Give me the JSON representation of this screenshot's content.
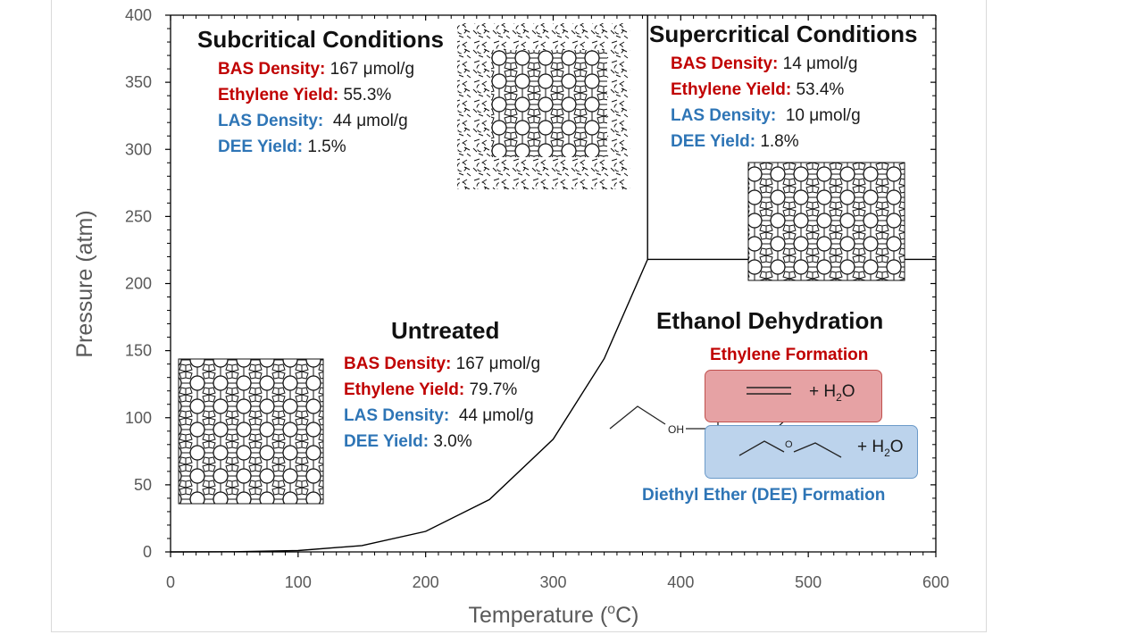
{
  "chart_data": {
    "type": "line",
    "title": "",
    "xlabel_text": "Temperature (",
    "xlabel_sup": "o",
    "xlabel_unit": "C)",
    "ylabel": "Pressure (atm)",
    "xlim": [
      0,
      600
    ],
    "ylim": [
      0,
      400
    ],
    "x_ticks": [
      "0",
      "100",
      "200",
      "300",
      "400",
      "500",
      "600"
    ],
    "y_ticks": [
      "0",
      "50",
      "100",
      "150",
      "200",
      "250",
      "300",
      "350",
      "400"
    ],
    "series": [
      {
        "name": "Vapor pressure curve",
        "x": [
          0,
          50,
          100,
          150,
          200,
          250,
          300,
          340,
          374
        ],
        "y": [
          0.006,
          0.12,
          1,
          4.7,
          15.3,
          39,
          84,
          144,
          218
        ]
      }
    ],
    "boundaries": [
      {
        "name": "critical-temperature-line",
        "x": [
          374,
          374
        ],
        "y": [
          218,
          400
        ]
      },
      {
        "name": "critical-pressure-line",
        "x": [
          374,
          600
        ],
        "y": [
          218,
          218
        ]
      }
    ]
  },
  "subcritical": {
    "title": "Subcritical Conditions",
    "bas_label": "BAS Density:",
    "bas_value": "167 μmol/g",
    "eth_label": "Ethylene Yield:",
    "eth_value": "55.3%",
    "las_label": "LAS Density:",
    "las_value": "44 μmol/g",
    "dee_label": "DEE Yield:",
    "dee_value": "1.5%"
  },
  "supercritical": {
    "title": "Supercritical Conditions",
    "bas_label": "BAS Density:",
    "bas_value": "14 μmol/g",
    "eth_label": "Ethylene Yield:",
    "eth_value": "53.4%",
    "las_label": "LAS Density:",
    "las_value": "10 μmol/g",
    "dee_label": "DEE Yield:",
    "dee_value": "1.8%"
  },
  "untreated": {
    "title": "Untreated",
    "bas_label": "BAS Density:",
    "bas_value": "167 μmol/g",
    "eth_label": "Ethylene Yield:",
    "eth_value": "79.7%",
    "las_label": "LAS Density:",
    "las_value": "44 μmol/g",
    "dee_label": "DEE Yield:",
    "dee_value": "3.0%"
  },
  "reaction": {
    "title": "Ethanol Dehydration",
    "ethylene_label": "Ethylene Formation",
    "dee_label": "Diethyl Ether (DEE) Formation",
    "oh_label": "OH",
    "o_label": "O",
    "water_prefix": "+ H",
    "water_sub": "2",
    "water_suffix": "O"
  },
  "colors": {
    "red": "#c00000",
    "blue": "#2e75b6",
    "axis": "#595959"
  }
}
